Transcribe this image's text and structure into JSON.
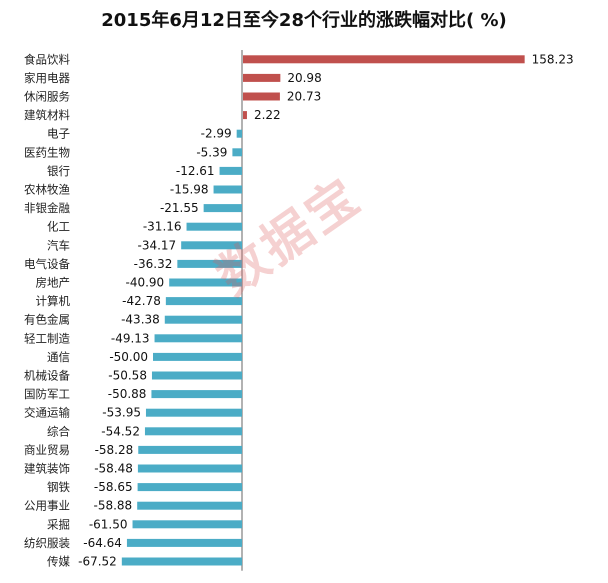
{
  "chart_data": {
    "type": "bar",
    "orientation": "horizontal",
    "title": "2015年6月12日至今28个行业的涨跌幅对比( %)",
    "categories": [
      "食品饮料",
      "家用电器",
      "休闲服务",
      "建筑材料",
      "电子",
      "医药生物",
      "银行",
      "农林牧渔",
      "非银金融",
      "化工",
      "汽车",
      "电气设备",
      "房地产",
      "计算机",
      "有色金属",
      "轻工制造",
      "通信",
      "机械设备",
      "国防军工",
      "交通运输",
      "综合",
      "商业贸易",
      "建筑装饰",
      "钢铁",
      "公用事业",
      "采掘",
      "纺织服装",
      "传媒"
    ],
    "values": [
      158.23,
      20.98,
      20.73,
      2.22,
      -2.99,
      -5.39,
      -12.61,
      -15.98,
      -21.55,
      -31.16,
      -34.17,
      -36.32,
      -40.9,
      -42.78,
      -43.38,
      -49.13,
      -50.0,
      -50.58,
      -50.88,
      -53.95,
      -54.52,
      -58.28,
      -58.48,
      -58.65,
      -58.88,
      -61.5,
      -64.64,
      -67.52
    ],
    "value_labels": [
      "158.23",
      "20.98",
      "20.73",
      "2.22",
      "-2.99",
      "-5.39",
      "-12.61",
      "-15.98",
      "-21.55",
      "-31.16",
      "-34.17",
      "-36.32",
      "-40.90",
      "-42.78",
      "-43.38",
      "-49.13",
      "-50.00",
      "-50.58",
      "-50.88",
      "-53.95",
      "-54.52",
      "-58.28",
      "-58.48",
      "-58.65",
      "-58.88",
      "-61.50",
      "-64.64",
      "-67.52"
    ],
    "positive_color": "#c0504d",
    "negative_color": "#4bacc6",
    "grid": false,
    "legend": "none"
  },
  "watermark": "数据宝"
}
